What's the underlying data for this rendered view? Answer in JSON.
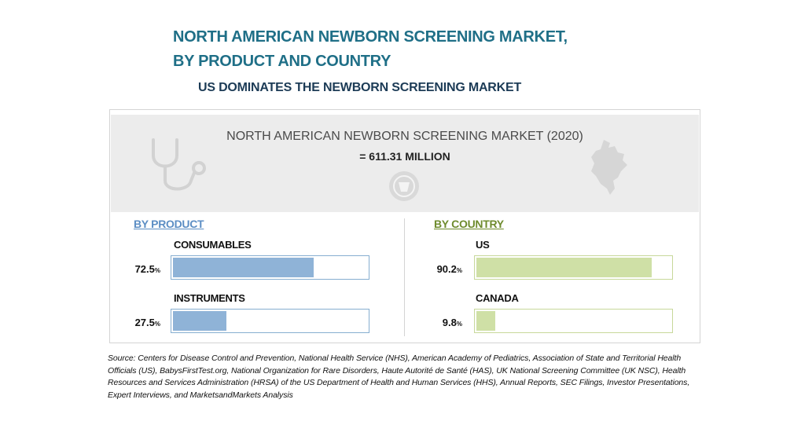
{
  "header": {
    "title_line1": "NORTH AMERICAN NEWBORN SCREENING MARKET,",
    "title_line2": "BY PRODUCT AND COUNTRY",
    "subtitle": "US DOMINATES THE NEWBORN SCREENING MARKET"
  },
  "banner": {
    "title": "NORTH AMERICAN NEWBORN SCREENING MARKET (2020)",
    "value": "= 611.31 MILLION",
    "icons": [
      "stethoscope-icon",
      "medical-badge-icon",
      "north-america-map-icon"
    ]
  },
  "colors": {
    "title": "#1f6f87",
    "product_accent": "#5c8ec4",
    "product_bar": "#8fb3d7",
    "country_accent": "#6e8b2d",
    "country_bar": "#cfe0a6"
  },
  "chart_data": [
    {
      "type": "bar",
      "title": "BY PRODUCT",
      "categories": [
        "CONSUMABLES",
        "INSTRUMENTS"
      ],
      "values": [
        72.5,
        27.5
      ],
      "value_labels": [
        "72.5",
        "27.5"
      ],
      "unit": "%",
      "ylim": [
        0,
        100
      ]
    },
    {
      "type": "bar",
      "title": "BY COUNTRY",
      "categories": [
        "US",
        "CANADA"
      ],
      "values": [
        90.2,
        9.8
      ],
      "value_labels": [
        "90.2",
        "9.8"
      ],
      "unit": "%",
      "ylim": [
        0,
        100
      ]
    }
  ],
  "source": "Source: Centers for Disease Control and Prevention, National Health Service (NHS), American Academy of Pediatrics, Association of State and Territorial Health Officials (US), BabysFirstTest.org, National Organization for Rare Disorders, Haute Autorité de Santé (HAS), UK National Screening Committee (UK NSC), Health Resources and Services Administration (HRSA) of the US Department of Health and Human Services (HHS), Annual Reports, SEC Filings, Investor Presentations, Expert Interviews, and MarketsandMarkets Analysis"
}
